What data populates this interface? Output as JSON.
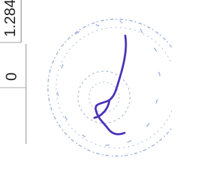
{
  "fragments": {
    "number": "1.284",
    "zero": "0"
  }
}
